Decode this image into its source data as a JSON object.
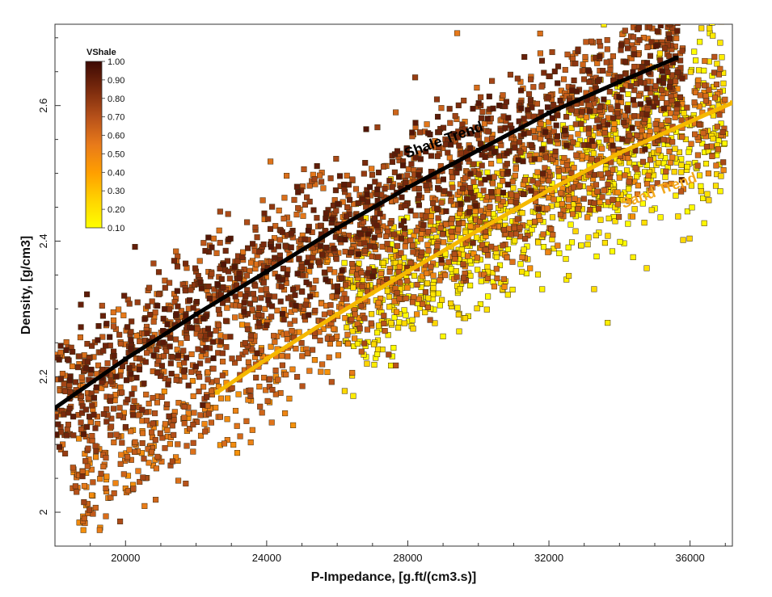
{
  "chart_data": {
    "type": "scatter",
    "xlabel": "P-Impedance, [g.ft/(cm3.s)]",
    "ylabel": "Density, [g/cm3]",
    "xlim": [
      18000,
      37200
    ],
    "ylim": [
      1.95,
      2.72
    ],
    "x_ticks": [
      20000,
      24000,
      28000,
      32000,
      36000
    ],
    "y_ticks": [
      2,
      2.2,
      2.4,
      2.6
    ],
    "y_tick_labels": [
      "2",
      "2.2",
      "2.4",
      "2.6"
    ],
    "grid": false,
    "colorbar": {
      "title": "VShale",
      "ticks": [
        "1.00",
        "0.90",
        "0.80",
        "0.70",
        "0.60",
        "0.50",
        "0.40",
        "0.30",
        "0.20",
        "0.10"
      ],
      "min": 0.1,
      "max": 1.0,
      "placement": "top-left",
      "colors": [
        "#ffff00",
        "#ffd500",
        "#ff9f00",
        "#e87a1a",
        "#b8521a",
        "#7a2a0d",
        "#3d0a04"
      ]
    },
    "series": [
      {
        "name": "Shale Trend",
        "type": "line",
        "color": "#000000",
        "x": [
          18000,
          20000,
          22000,
          24000,
          26000,
          28000,
          30000,
          32000,
          34000,
          35600
        ],
        "y": [
          2.154,
          2.226,
          2.292,
          2.355,
          2.419,
          2.479,
          2.534,
          2.589,
          2.635,
          2.67
        ]
      },
      {
        "name": "Sand Trend",
        "type": "line",
        "color": "#f5b800",
        "x": [
          22600,
          24000,
          26000,
          28000,
          30000,
          32000,
          34000,
          37200
        ],
        "y": [
          2.177,
          2.226,
          2.292,
          2.355,
          2.416,
          2.475,
          2.53,
          2.604
        ]
      }
    ],
    "point_clouds": [
      {
        "kind": "shale",
        "vshale": [
          0.55,
          0.95
        ],
        "x_range": [
          18000,
          35800
        ],
        "trend": "Shale Trend",
        "spread": 0.05,
        "count": 1800
      },
      {
        "kind": "mixed",
        "vshale": [
          0.45,
          0.75
        ],
        "x_range": [
          18500,
          37000
        ],
        "trend": "Sand Trend",
        "spread": 0.045,
        "count": 1100
      },
      {
        "kind": "sand",
        "vshale": [
          0.1,
          0.25
        ],
        "x_range": [
          26200,
          37000
        ],
        "trend": "Sand Trend",
        "spread": 0.06,
        "count": 900
      }
    ]
  }
}
